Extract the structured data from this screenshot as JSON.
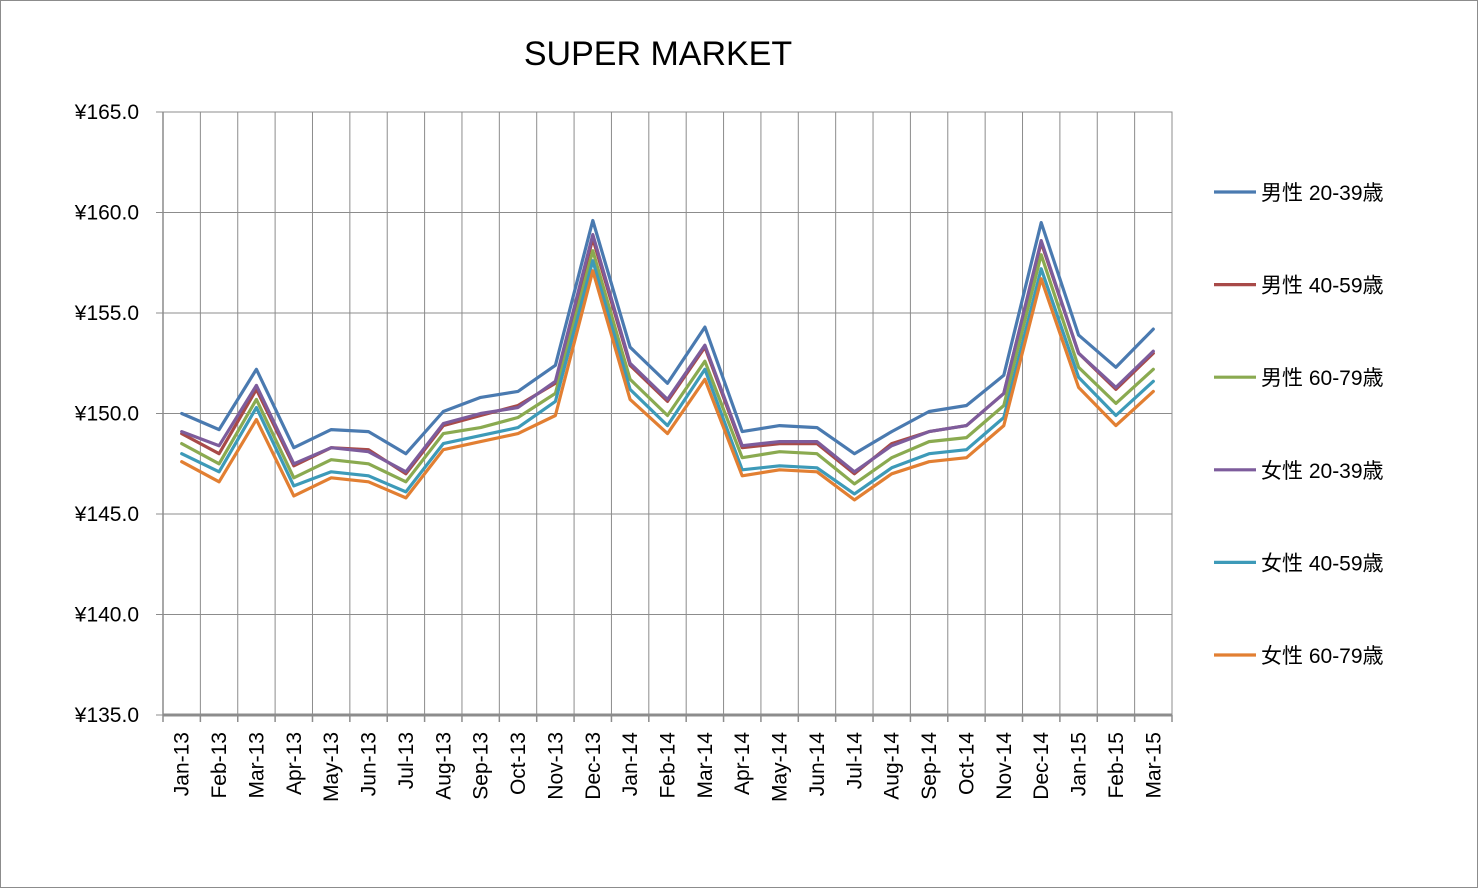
{
  "chart_data": {
    "type": "line",
    "title": "SUPER MARKET",
    "xlabel": "",
    "ylabel": "",
    "ylim": [
      135,
      165
    ],
    "y_ticks": [
      "¥135.0",
      "¥140.0",
      "¥145.0",
      "¥150.0",
      "¥155.0",
      "¥160.0",
      "¥165.0"
    ],
    "grid": true,
    "legend_position": "right",
    "categories": [
      "Jan-13",
      "Feb-13",
      "Mar-13",
      "Apr-13",
      "May-13",
      "Jun-13",
      "Jul-13",
      "Aug-13",
      "Sep-13",
      "Oct-13",
      "Nov-13",
      "Dec-13",
      "Jan-14",
      "Feb-14",
      "Mar-14",
      "Apr-14",
      "May-14",
      "Jun-14",
      "Jul-14",
      "Aug-14",
      "Sep-14",
      "Oct-14",
      "Nov-14",
      "Dec-14",
      "Jan-15",
      "Feb-15",
      "Mar-15"
    ],
    "series": [
      {
        "name": "男性 20-39歳",
        "color": "#4a7ab0",
        "values": [
          150.0,
          149.2,
          152.2,
          148.3,
          149.2,
          149.1,
          148.0,
          150.1,
          150.8,
          151.1,
          152.4,
          159.6,
          153.3,
          151.5,
          154.3,
          149.1,
          149.4,
          149.3,
          148.0,
          149.1,
          150.1,
          150.4,
          151.9,
          159.5,
          153.9,
          152.3,
          154.2
        ]
      },
      {
        "name": "男性 40-59歳",
        "color": "#a84a48",
        "values": [
          149.0,
          148.0,
          151.2,
          147.4,
          148.3,
          148.2,
          147.0,
          149.4,
          149.9,
          150.4,
          151.5,
          158.7,
          152.4,
          150.6,
          153.3,
          148.3,
          148.5,
          148.5,
          147.0,
          148.5,
          149.1,
          149.4,
          151.0,
          158.5,
          153.0,
          151.2,
          153.0
        ]
      },
      {
        "name": "男性 60-79歳",
        "color": "#8aaa50",
        "values": [
          148.5,
          147.5,
          150.7,
          146.8,
          147.7,
          147.5,
          146.6,
          149.0,
          149.3,
          149.8,
          151.0,
          158.1,
          151.7,
          149.9,
          152.6,
          147.8,
          148.1,
          148.0,
          146.5,
          147.8,
          148.6,
          148.8,
          150.4,
          157.9,
          152.3,
          150.5,
          152.2
        ]
      },
      {
        "name": "女性 20-39歳",
        "color": "#7d5c9c",
        "values": [
          149.1,
          148.4,
          151.4,
          147.5,
          148.3,
          148.1,
          147.1,
          149.5,
          150.0,
          150.3,
          151.6,
          158.9,
          152.5,
          150.7,
          153.4,
          148.4,
          148.6,
          148.6,
          147.1,
          148.4,
          149.1,
          149.4,
          151.0,
          158.6,
          153.0,
          151.3,
          153.1
        ]
      },
      {
        "name": "女性 40-59歳",
        "color": "#3d9ab8",
        "values": [
          148.0,
          147.1,
          150.3,
          146.4,
          147.1,
          146.9,
          146.1,
          148.5,
          148.9,
          149.3,
          150.6,
          157.6,
          151.2,
          149.4,
          152.2,
          147.2,
          147.4,
          147.3,
          146.0,
          147.3,
          148.0,
          148.2,
          149.8,
          157.2,
          151.8,
          149.9,
          151.6
        ]
      },
      {
        "name": "女性 60-79歳",
        "color": "#e27f32",
        "values": [
          147.6,
          146.6,
          149.7,
          145.9,
          146.8,
          146.6,
          145.8,
          148.2,
          148.6,
          149.0,
          149.9,
          157.1,
          150.7,
          149.0,
          151.7,
          146.9,
          147.2,
          147.1,
          145.7,
          147.0,
          147.6,
          147.8,
          149.4,
          156.7,
          151.3,
          149.4,
          151.1
        ]
      }
    ]
  }
}
